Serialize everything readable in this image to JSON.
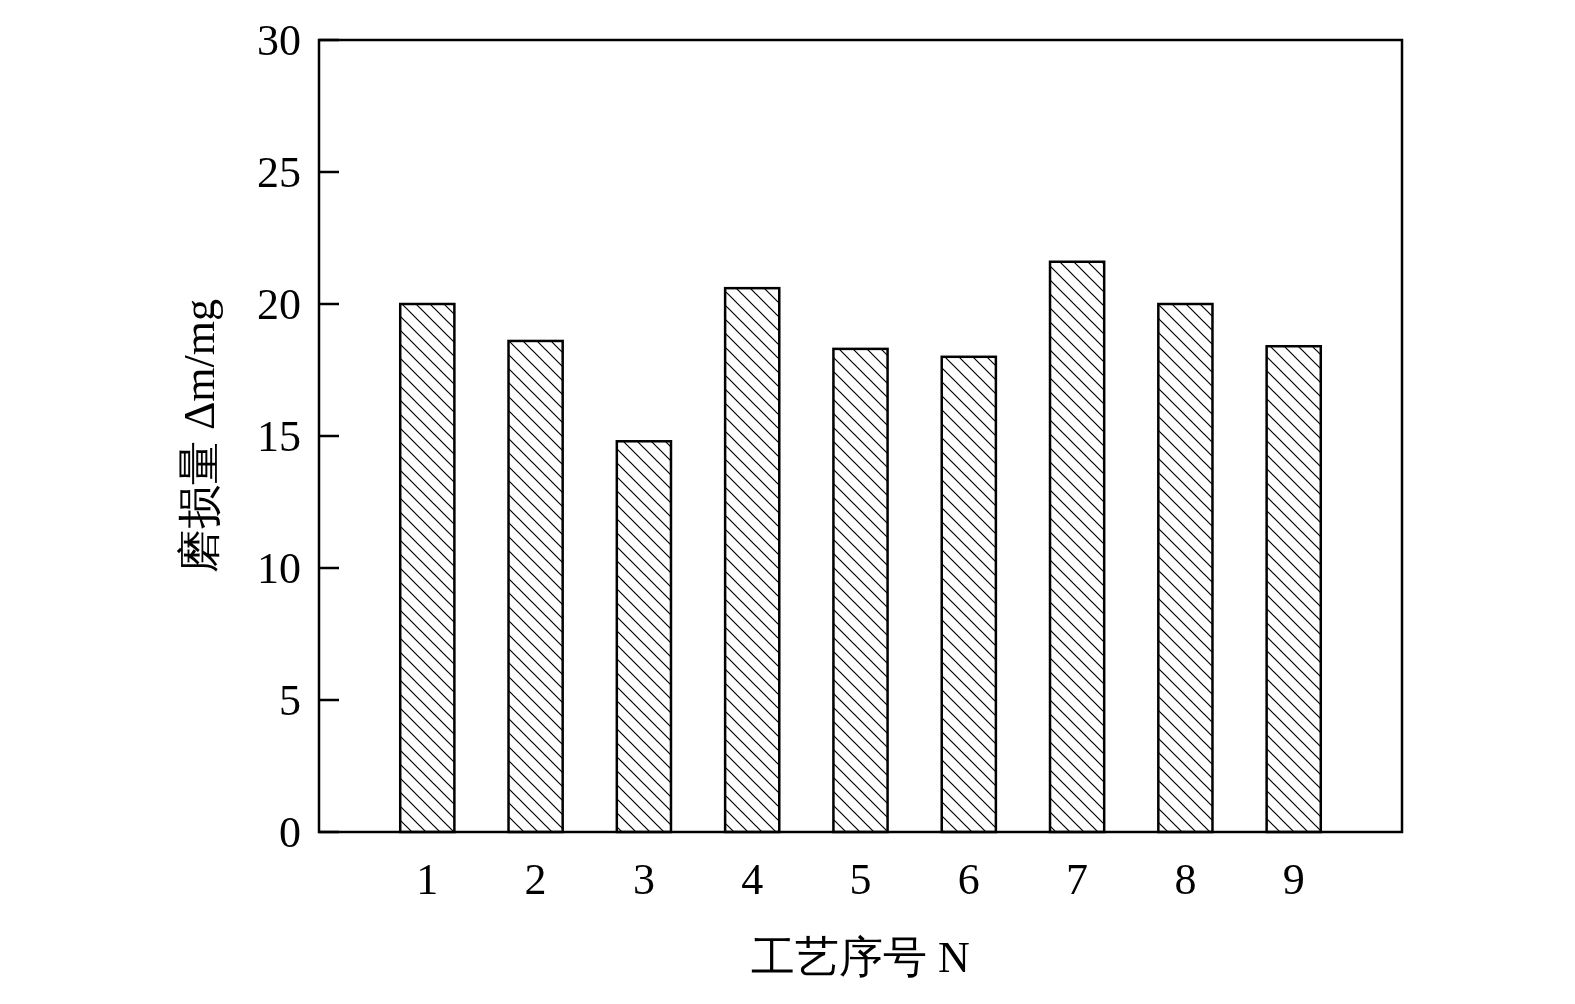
{
  "chart_data": {
    "type": "bar",
    "xlabel": "工艺序号 N",
    "ylabel": "磨损量 Δm/mg",
    "categories": [
      "1",
      "2",
      "3",
      "4",
      "5",
      "6",
      "7",
      "8",
      "9"
    ],
    "values": [
      20.0,
      18.6,
      14.8,
      20.6,
      18.3,
      18.0,
      21.6,
      20.0,
      18.4
    ],
    "color": "#000000",
    "ylim": [
      0,
      30
    ],
    "yticks": [
      0,
      5,
      10,
      15,
      20,
      25,
      30
    ],
    "grid": false
  }
}
